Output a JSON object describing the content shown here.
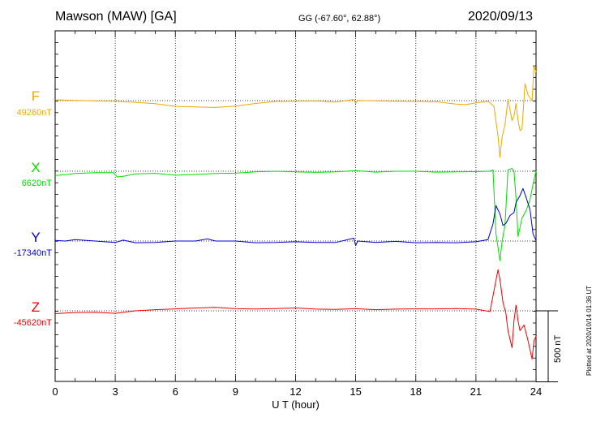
{
  "header": {
    "station": "Mawson (MAW)  [GA]",
    "coords": "GG (-67.60°,  62.88°)",
    "date": "2020/09/13"
  },
  "plotted_note": "Plotted at 2020/10/14 01:36 UT",
  "scale_label": "500 nT",
  "colors": {
    "F": "#f0a800",
    "X": "#00dd00",
    "Y": "#0000cc",
    "Z": "#ee0000"
  },
  "chart_data": {
    "type": "line",
    "xlabel": "U T (hour)",
    "xlim": [
      0,
      24
    ],
    "xticks": [
      "0",
      "3",
      "6",
      "9",
      "12",
      "15",
      "18",
      "21",
      "24"
    ],
    "scale_bar_nT": 500,
    "series": [
      {
        "name": "F",
        "baseline_label": "49260nT",
        "baseline_nT": 49260,
        "points": [
          [
            0,
            49266
          ],
          [
            1,
            49261
          ],
          [
            2,
            49258
          ],
          [
            3,
            49256
          ],
          [
            4,
            49248
          ],
          [
            5,
            49238
          ],
          [
            6,
            49220
          ],
          [
            7,
            49216
          ],
          [
            8,
            49212
          ],
          [
            9,
            49222
          ],
          [
            10,
            49240
          ],
          [
            11,
            49254
          ],
          [
            12,
            49256
          ],
          [
            13,
            49259
          ],
          [
            14,
            49250
          ],
          [
            14.9,
            49268
          ],
          [
            15,
            49240
          ],
          [
            15.1,
            49262
          ],
          [
            16,
            49258
          ],
          [
            17,
            49256
          ],
          [
            18,
            49255
          ],
          [
            19,
            49252
          ],
          [
            20,
            49236
          ],
          [
            20.5,
            49232
          ],
          [
            21,
            49244
          ],
          [
            21.6,
            49256
          ],
          [
            21.9,
            49220
          ],
          [
            22.1,
            49010
          ],
          [
            22.2,
            48860
          ],
          [
            22.3,
            49000
          ],
          [
            22.45,
            49090
          ],
          [
            22.6,
            49270
          ],
          [
            22.8,
            49120
          ],
          [
            22.9,
            49150
          ],
          [
            23.0,
            49240
          ],
          [
            23.1,
            49120
          ],
          [
            23.2,
            49050
          ],
          [
            23.3,
            49060
          ],
          [
            23.45,
            49380
          ],
          [
            23.6,
            49300
          ],
          [
            23.8,
            49260
          ],
          [
            23.9,
            49510
          ],
          [
            24,
            49460
          ]
        ]
      },
      {
        "name": "X",
        "baseline_label": "6620nT",
        "baseline_nT": 6620,
        "points": [
          [
            0,
            6590
          ],
          [
            0.5,
            6596
          ],
          [
            1,
            6604
          ],
          [
            2,
            6610
          ],
          [
            2.9,
            6610
          ],
          [
            3.1,
            6580
          ],
          [
            3.4,
            6584
          ],
          [
            4,
            6602
          ],
          [
            5,
            6605
          ],
          [
            6,
            6592
          ],
          [
            7,
            6597
          ],
          [
            8,
            6604
          ],
          [
            9,
            6606
          ],
          [
            10,
            6616
          ],
          [
            11,
            6620
          ],
          [
            12,
            6616
          ],
          [
            13,
            6612
          ],
          [
            14,
            6616
          ],
          [
            15,
            6624
          ],
          [
            16,
            6614
          ],
          [
            17,
            6620
          ],
          [
            18,
            6620
          ],
          [
            19,
            6614
          ],
          [
            20,
            6616
          ],
          [
            21,
            6617
          ],
          [
            21.7,
            6620
          ],
          [
            21.85,
            6630
          ],
          [
            22.0,
            6180
          ],
          [
            22.2,
            5990
          ],
          [
            22.3,
            6120
          ],
          [
            22.45,
            6240
          ],
          [
            22.6,
            6630
          ],
          [
            22.8,
            6640
          ],
          [
            22.9,
            6620
          ],
          [
            23.0,
            6430
          ],
          [
            23.1,
            6160
          ],
          [
            23.3,
            6290
          ],
          [
            23.5,
            6340
          ],
          [
            23.7,
            6420
          ],
          [
            23.85,
            6530
          ],
          [
            24,
            6620
          ]
        ]
      },
      {
        "name": "Y",
        "baseline_label": "-17340nT",
        "baseline_nT": -17340,
        "points": [
          [
            0,
            -17336
          ],
          [
            0.5,
            -17340
          ],
          [
            1,
            -17330
          ],
          [
            2,
            -17340
          ],
          [
            3,
            -17350
          ],
          [
            3.4,
            -17334
          ],
          [
            4,
            -17352
          ],
          [
            5,
            -17350
          ],
          [
            6,
            -17340
          ],
          [
            7,
            -17340
          ],
          [
            7.6,
            -17325
          ],
          [
            8,
            -17340
          ],
          [
            9,
            -17340
          ],
          [
            10,
            -17352
          ],
          [
            11,
            -17350
          ],
          [
            12,
            -17345
          ],
          [
            13,
            -17350
          ],
          [
            14,
            -17350
          ],
          [
            14.9,
            -17320
          ],
          [
            15,
            -17372
          ],
          [
            15.1,
            -17340
          ],
          [
            16,
            -17350
          ],
          [
            17,
            -17342
          ],
          [
            18,
            -17352
          ],
          [
            19,
            -17350
          ],
          [
            20,
            -17352
          ],
          [
            21,
            -17345
          ],
          [
            21.6,
            -17330
          ],
          [
            21.85,
            -17220
          ],
          [
            22.0,
            -17090
          ],
          [
            22.2,
            -17150
          ],
          [
            22.35,
            -17230
          ],
          [
            22.5,
            -17215
          ],
          [
            22.7,
            -17160
          ],
          [
            22.9,
            -17140
          ],
          [
            23.0,
            -17070
          ],
          [
            23.2,
            -17020
          ],
          [
            23.35,
            -16970
          ],
          [
            23.5,
            -17030
          ],
          [
            23.7,
            -17120
          ],
          [
            23.85,
            -17290
          ],
          [
            24,
            -17336
          ]
        ]
      },
      {
        "name": "Z",
        "baseline_label": "-45620nT",
        "baseline_nT": -45620,
        "points": [
          [
            0,
            -45640
          ],
          [
            0.5,
            -45636
          ],
          [
            1,
            -45632
          ],
          [
            2,
            -45630
          ],
          [
            3,
            -45638
          ],
          [
            4,
            -45620
          ],
          [
            5,
            -45612
          ],
          [
            6,
            -45606
          ],
          [
            7,
            -45600
          ],
          [
            8,
            -45596
          ],
          [
            9,
            -45605
          ],
          [
            10,
            -45607
          ],
          [
            11,
            -45604
          ],
          [
            12,
            -45600
          ],
          [
            13,
            -45608
          ],
          [
            14,
            -45610
          ],
          [
            15,
            -45605
          ],
          [
            16,
            -45612
          ],
          [
            17,
            -45608
          ],
          [
            18,
            -45606
          ],
          [
            19,
            -45606
          ],
          [
            20,
            -45604
          ],
          [
            21,
            -45608
          ],
          [
            21.7,
            -45625
          ],
          [
            21.9,
            -45480
          ],
          [
            22.1,
            -45330
          ],
          [
            22.2,
            -45400
          ],
          [
            22.35,
            -45560
          ],
          [
            22.5,
            -45640
          ],
          [
            22.6,
            -45760
          ],
          [
            22.8,
            -45880
          ],
          [
            22.9,
            -45690
          ],
          [
            23.0,
            -45580
          ],
          [
            23.1,
            -45690
          ],
          [
            23.2,
            -45760
          ],
          [
            23.4,
            -45720
          ],
          [
            23.6,
            -45830
          ],
          [
            23.8,
            -45960
          ],
          [
            23.9,
            -45830
          ],
          [
            24,
            -45800
          ]
        ]
      }
    ]
  }
}
